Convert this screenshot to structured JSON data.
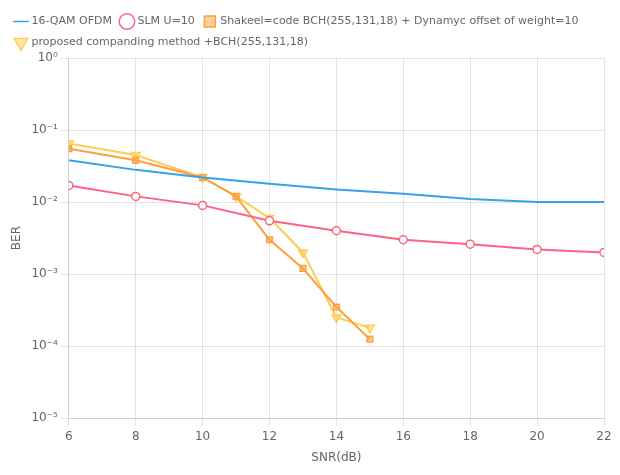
{
  "chart_data": {
    "type": "line",
    "x_label": "SNR(dB)",
    "y_label": "BER",
    "log": "y",
    "grid": true,
    "legend": "upper left",
    "xlim": [
      6,
      22
    ],
    "xticks": [
      6,
      8,
      10,
      12,
      14,
      16,
      18,
      20,
      22
    ],
    "ylim": [
      1e-05,
      1
    ],
    "yticks": [
      {
        "value": 1e-05,
        "label": "10⁻⁵"
      },
      {
        "value": 0.0001,
        "label": "10⁻⁴"
      },
      {
        "value": 0.001,
        "label": "10⁻³"
      },
      {
        "value": 0.01,
        "label": "10⁻²"
      },
      {
        "value": 0.1,
        "label": "10⁻¹"
      },
      {
        "value": 1,
        "label": "10⁰"
      }
    ],
    "series": [
      {
        "name": "16-QAM OFDM",
        "marker": "none",
        "line_style": "solid",
        "x": [
          6,
          8,
          10,
          12,
          14,
          16,
          18,
          20,
          22
        ],
        "values": [
          0.038,
          0.028,
          0.022,
          0.018,
          0.015,
          0.013,
          0.011,
          0.01,
          0.01
        ]
      },
      {
        "name": "SLM U=10",
        "marker": "circle-open",
        "line_style": "solid",
        "x": [
          6,
          8,
          10,
          12,
          14,
          16,
          18,
          20,
          22
        ],
        "values": [
          0.017,
          0.012,
          0.009,
          0.0055,
          0.004,
          0.003,
          0.0026,
          0.0022,
          0.002
        ]
      },
      {
        "name": "Shakeel=code BCH(255,131,18) + Dynamyc offset of weight=10",
        "marker": "square",
        "line_style": "solid",
        "x": [
          6,
          8,
          10,
          11,
          12,
          13,
          14,
          15
        ],
        "values": [
          0.055,
          0.038,
          0.022,
          0.012,
          0.003,
          0.0012,
          0.00035,
          0.000125
        ]
      },
      {
        "name": "proposed companding method +BCH(255,131,18)",
        "marker": "triangle-down",
        "line_style": "solid",
        "x": [
          6,
          8,
          10,
          11,
          12,
          13,
          14,
          15
        ],
        "values": [
          0.065,
          0.045,
          0.022,
          0.012,
          0.006,
          0.002,
          0.00025,
          0.00018
        ]
      }
    ]
  }
}
